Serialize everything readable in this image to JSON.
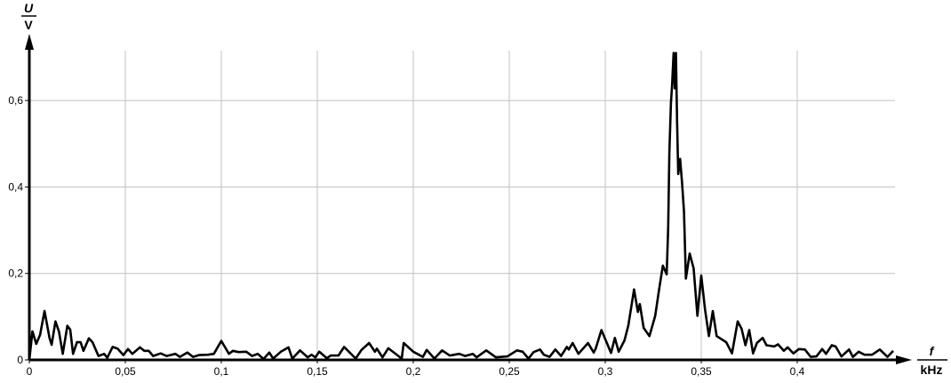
{
  "chart_data": {
    "type": "line",
    "xlabel": {
      "symbol": "f",
      "unit": "kHz"
    },
    "ylabel": {
      "symbol": "U",
      "unit": "V"
    },
    "xlim": [
      0,
      0.45
    ],
    "ylim": [
      0,
      0.715
    ],
    "grid": true,
    "line_color": "#000000",
    "grid_color": "#c0c0c0",
    "x_ticks": [
      0,
      0.05,
      0.1,
      0.15,
      0.2,
      0.25,
      0.3,
      0.35,
      0.4
    ],
    "x_tick_labels": [
      "0",
      "0,05",
      "0,1",
      "0,15",
      "0,2",
      "0,25",
      "0,3",
      "0,35",
      "0,4"
    ],
    "y_ticks": [
      0,
      0.2,
      0.4,
      0.6
    ],
    "y_tick_labels": [
      "0",
      "0,2",
      "0,4",
      "0,6"
    ],
    "x": [
      0,
      0.0016,
      0.0036,
      0.0056,
      0.0079,
      0.0105,
      0.0116,
      0.0136,
      0.0154,
      0.0174,
      0.0198,
      0.0213,
      0.0228,
      0.0248,
      0.0267,
      0.0282,
      0.031,
      0.0329,
      0.036,
      0.039,
      0.0406,
      0.0434,
      0.046,
      0.049,
      0.0514,
      0.0537,
      0.0576,
      0.0599,
      0.0622,
      0.0645,
      0.0684,
      0.0715,
      0.0761,
      0.0784,
      0.0823,
      0.0853,
      0.0884,
      0.093,
      0.0961,
      0.1,
      0.104,
      0.106,
      0.109,
      0.113,
      0.116,
      0.119,
      0.122,
      0.125,
      0.127,
      0.131,
      0.135,
      0.137,
      0.141,
      0.145,
      0.147,
      0.149,
      0.151,
      0.155,
      0.157,
      0.161,
      0.164,
      0.17,
      0.173,
      0.177,
      0.18,
      0.181,
      0.184,
      0.187,
      0.194,
      0.195,
      0.2,
      0.205,
      0.207,
      0.211,
      0.215,
      0.219,
      0.224,
      0.227,
      0.231,
      0.233,
      0.238,
      0.243,
      0.249,
      0.254,
      0.257,
      0.26,
      0.2627,
      0.266,
      0.268,
      0.271,
      0.274,
      0.277,
      0.28,
      0.281,
      0.283,
      0.286,
      0.291,
      0.294,
      0.295,
      0.298,
      0.303,
      0.305,
      0.307,
      0.31,
      0.312,
      0.315,
      0.317,
      0.318,
      0.32,
      0.323,
      0.326,
      0.328,
      0.33,
      0.332,
      0.3328,
      0.3334,
      0.3342,
      0.3348,
      0.3356,
      0.3362,
      0.3368,
      0.3374,
      0.338,
      0.339,
      0.34,
      0.341,
      0.342,
      0.344,
      0.346,
      0.348,
      0.35,
      0.352,
      0.354,
      0.356,
      0.358,
      0.363,
      0.366,
      0.369,
      0.371,
      0.373,
      0.375,
      0.377,
      0.379,
      0.382,
      0.384,
      0.388,
      0.39,
      0.393,
      0.395,
      0.398,
      0.4009,
      0.404,
      0.407,
      0.41,
      0.413,
      0.415,
      0.418,
      0.42,
      0.423,
      0.427,
      0.429,
      0.432,
      0.435,
      0.439,
      0.443,
      0.447,
      0.45
    ],
    "y": [
      0,
      0.066,
      0.037,
      0.058,
      0.113,
      0.051,
      0.035,
      0.089,
      0.066,
      0.014,
      0.079,
      0.07,
      0.014,
      0.041,
      0.041,
      0.021,
      0.05,
      0.041,
      0.009,
      0.014,
      0.005,
      0.03,
      0.026,
      0.011,
      0.025,
      0.014,
      0.029,
      0.021,
      0.021,
      0.009,
      0.015,
      0.009,
      0.014,
      0.007,
      0.017,
      0.007,
      0.011,
      0.012,
      0.014,
      0.044,
      0.014,
      0.021,
      0.018,
      0.019,
      0.009,
      0.014,
      0.002,
      0.017,
      0.003,
      0.019,
      0.029,
      0.003,
      0.022,
      0.006,
      0.012,
      0.006,
      0.019,
      0.004,
      0.01,
      0.01,
      0.03,
      0.003,
      0.023,
      0.039,
      0.019,
      0.026,
      0.006,
      0.027,
      0.003,
      0.039,
      0.019,
      0.007,
      0.023,
      0.003,
      0.022,
      0.01,
      0.014,
      0.009,
      0.014,
      0.006,
      0.022,
      0.006,
      0.008,
      0.022,
      0.019,
      0.003,
      0.018,
      0.024,
      0.012,
      0.007,
      0.024,
      0.009,
      0.03,
      0.024,
      0.039,
      0.014,
      0.039,
      0.017,
      0.026,
      0.069,
      0.016,
      0.051,
      0.019,
      0.045,
      0.079,
      0.163,
      0.111,
      0.129,
      0.074,
      0.055,
      0.102,
      0.162,
      0.218,
      0.198,
      0.306,
      0.478,
      0.595,
      0.636,
      0.71,
      0.628,
      0.71,
      0.552,
      0.43,
      0.465,
      0.41,
      0.342,
      0.188,
      0.246,
      0.212,
      0.102,
      0.195,
      0.116,
      0.055,
      0.113,
      0.055,
      0.041,
      0.015,
      0.089,
      0.072,
      0.034,
      0.069,
      0.015,
      0.039,
      0.051,
      0.034,
      0.031,
      0.036,
      0.021,
      0.029,
      0.015,
      0.025,
      0.024,
      0.007,
      0.008,
      0.025,
      0.014,
      0.034,
      0.031,
      0.008,
      0.024,
      0.007,
      0.019,
      0.012,
      0.012,
      0.024,
      0.007,
      0.021
    ]
  }
}
